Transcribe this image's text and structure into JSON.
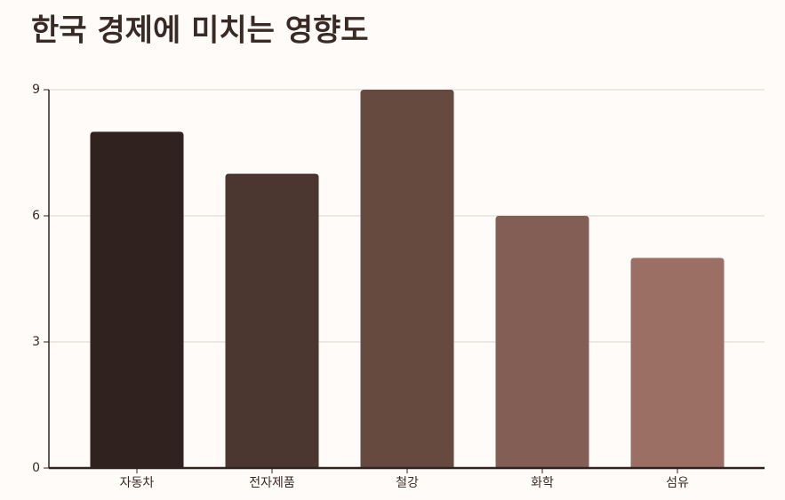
{
  "chart_data": {
    "type": "bar",
    "title": "한국 경제에 미치는 영향도",
    "categories": [
      "자동차",
      "전자제품",
      "철강",
      "화학",
      "섬유"
    ],
    "values": [
      8,
      7,
      9,
      6,
      5
    ],
    "colors": [
      "#2f221f",
      "#4b3730",
      "#664a40",
      "#825e55",
      "#9c6f64"
    ],
    "ylim": [
      0,
      9
    ],
    "yticks": [
      0,
      3,
      6,
      9
    ],
    "grid": true
  }
}
